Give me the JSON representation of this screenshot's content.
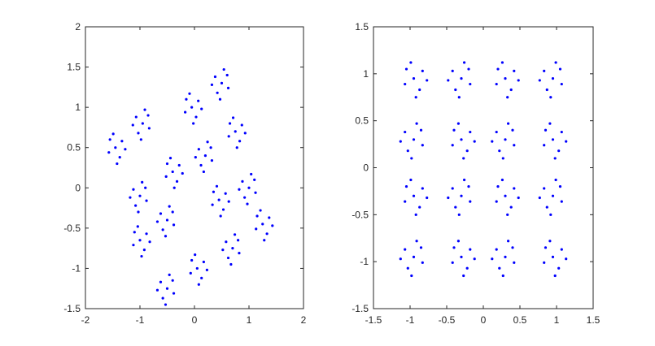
{
  "chart_data": [
    {
      "type": "scatter",
      "color": "#0000ff",
      "xlim": [
        -2,
        2
      ],
      "ylim": [
        -1.5,
        2
      ],
      "xticks": [
        -2,
        -1,
        0,
        1,
        2
      ],
      "yticks": [
        -1.5,
        -1,
        -0.5,
        0,
        0.5,
        1,
        1.5,
        2
      ],
      "x": [
        -1.45,
        -1.33,
        -1.55,
        -1.37,
        -1.57,
        -1.27,
        -1.49,
        -1.42,
        -0.95,
        -1.07,
        -0.85,
        -1.03,
        -0.83,
        -1.13,
        -0.91,
        -0.98,
        -0.05,
        0.07,
        -0.15,
        0.03,
        -0.17,
        0.13,
        -0.09,
        -0.02,
        0.5,
        0.38,
        0.6,
        0.42,
        0.62,
        0.32,
        0.54,
        0.47,
        0.75,
        0.87,
        0.65,
        0.83,
        0.63,
        0.93,
        0.71,
        0.78,
        0.2,
        0.08,
        0.3,
        0.12,
        0.32,
        0.02,
        0.24,
        0.17,
        -0.4,
        -0.28,
        -0.5,
        -0.32,
        -0.52,
        -0.22,
        -0.44,
        -0.37,
        -1,
        -1.12,
        -0.9,
        -1.08,
        -0.88,
        -1.18,
        -0.96,
        -1.03,
        -1,
        -0.88,
        -1.1,
        -0.92,
        -1.12,
        -0.82,
        -1.04,
        -0.97,
        -0.5,
        -0.62,
        -0.4,
        -0.58,
        -0.38,
        -0.68,
        -0.46,
        -0.53,
        0.45,
        0.57,
        0.35,
        0.53,
        0.33,
        0.63,
        0.41,
        0.48,
        1,
        0.88,
        1.1,
        0.92,
        1.12,
        0.82,
        1.04,
        0.97,
        1.25,
        1.37,
        1.15,
        1.33,
        1.13,
        1.43,
        1.21,
        1.28,
        0.7,
        0.58,
        0.8,
        0.62,
        0.82,
        0.52,
        0.74,
        0.67,
        0.05,
        0.17,
        -0.05,
        0.13,
        -0.07,
        0.23,
        0.01,
        0.08,
        -0.5,
        -0.62,
        -0.4,
        -0.58,
        -0.38,
        -0.68,
        -0.46,
        -0.53
      ],
      "values": [
        0.5,
        0.58,
        0.6,
        0.38,
        0.44,
        0.48,
        0.67,
        0.3,
        0.8,
        0.88,
        0.9,
        0.68,
        0.74,
        0.78,
        0.97,
        0.6,
        1,
        1.08,
        1.1,
        0.88,
        0.94,
        0.98,
        1.17,
        0.8,
        1.3,
        1.38,
        1.4,
        1.18,
        1.24,
        1.28,
        1.47,
        1.1,
        0.7,
        0.78,
        0.8,
        0.58,
        0.64,
        0.68,
        0.87,
        0.5,
        0.4,
        0.48,
        0.5,
        0.28,
        0.34,
        0.38,
        0.57,
        0.2,
        0.2,
        0.28,
        0.3,
        0.08,
        0.14,
        0.18,
        0.37,
        0,
        -0.1,
        -0.02,
        0,
        -0.22,
        -0.16,
        -0.12,
        0.07,
        -0.3,
        -0.65,
        -0.57,
        -0.55,
        -0.77,
        -0.71,
        -0.67,
        -0.48,
        -0.85,
        -0.4,
        -0.32,
        -0.3,
        -0.52,
        -0.46,
        -0.42,
        -0.23,
        -0.6,
        -0.15,
        -0.07,
        -0.05,
        -0.27,
        -0.21,
        -0.17,
        0.02,
        -0.35,
        0,
        0.08,
        0.1,
        -0.12,
        -0.06,
        -0.02,
        0.17,
        -0.2,
        -0.45,
        -0.37,
        -0.35,
        -0.57,
        -0.51,
        -0.47,
        -0.28,
        -0.65,
        -0.75,
        -0.67,
        -0.65,
        -0.87,
        -0.81,
        -0.77,
        -0.58,
        -0.95,
        -1,
        -0.92,
        -0.9,
        -1.12,
        -1.06,
        -1.02,
        -0.83,
        -1.2,
        -1.25,
        -1.17,
        -1.15,
        -1.37,
        -1.31,
        -1.27,
        -1.08,
        -1.45
      ]
    },
    {
      "type": "scatter",
      "color": "#0000ff",
      "xlim": [
        -1.5,
        1.5
      ],
      "ylim": [
        -1.5,
        1.5
      ],
      "xticks": [
        -1.5,
        -1,
        -0.5,
        0,
        0.5,
        1,
        1.5
      ],
      "yticks": [
        -1.5,
        -1,
        -0.5,
        0,
        0.5,
        1,
        1.5
      ],
      "x": [
        -0.95,
        -0.83,
        -1.05,
        -0.87,
        -1.07,
        -0.77,
        -0.99,
        -0.92,
        -0.3,
        -0.42,
        -0.2,
        -0.38,
        -0.18,
        -0.48,
        -0.26,
        -0.33,
        0.3,
        0.42,
        0.2,
        0.38,
        0.18,
        0.48,
        0.26,
        0.33,
        0.95,
        0.83,
        1.05,
        0.87,
        1.07,
        0.77,
        0.99,
        0.92,
        -0.95,
        -1.07,
        -0.85,
        -1.03,
        -0.83,
        -1.13,
        -0.91,
        -0.98,
        -0.3,
        -0.18,
        -0.4,
        -0.22,
        -0.42,
        -0.12,
        -0.34,
        -0.27,
        0.3,
        0.18,
        0.4,
        0.22,
        0.42,
        0.12,
        0.34,
        0.27,
        0.95,
        1.07,
        0.85,
        1.03,
        0.83,
        1.13,
        0.91,
        0.98,
        -0.95,
        -0.83,
        -1.05,
        -0.87,
        -1.07,
        -0.77,
        -0.99,
        -0.92,
        -0.3,
        -0.42,
        -0.2,
        -0.38,
        -0.18,
        -0.48,
        -0.26,
        -0.33,
        0.3,
        0.42,
        0.2,
        0.38,
        0.18,
        0.48,
        0.26,
        0.33,
        0.95,
        0.83,
        1.05,
        0.87,
        1.07,
        0.77,
        0.99,
        0.92,
        -0.95,
        -1.07,
        -0.85,
        -1.03,
        -0.83,
        -1.13,
        -0.91,
        -0.98,
        -0.3,
        -0.18,
        -0.4,
        -0.22,
        -0.42,
        -0.12,
        -0.34,
        -0.27,
        0.3,
        0.18,
        0.4,
        0.22,
        0.42,
        0.12,
        0.34,
        0.27,
        0.95,
        1.07,
        0.85,
        1.03,
        0.83,
        1.13,
        0.91,
        0.98
      ],
      "values": [
        0.95,
        1.03,
        1.05,
        0.83,
        0.89,
        0.93,
        1.12,
        0.75,
        0.95,
        1.03,
        1.05,
        0.83,
        0.89,
        0.93,
        1.12,
        0.75,
        0.95,
        1.03,
        1.05,
        0.83,
        0.89,
        0.93,
        1.12,
        0.75,
        0.95,
        1.03,
        1.05,
        0.83,
        0.89,
        0.93,
        1.12,
        0.75,
        0.3,
        0.38,
        0.4,
        0.18,
        0.24,
        0.28,
        0.47,
        0.1,
        0.3,
        0.38,
        0.4,
        0.18,
        0.24,
        0.28,
        0.47,
        0.1,
        0.3,
        0.38,
        0.4,
        0.18,
        0.24,
        0.28,
        0.47,
        0.1,
        0.3,
        0.38,
        0.4,
        0.18,
        0.24,
        0.28,
        0.47,
        0.1,
        -0.3,
        -0.22,
        -0.2,
        -0.42,
        -0.36,
        -0.32,
        -0.13,
        -0.5,
        -0.3,
        -0.22,
        -0.2,
        -0.42,
        -0.36,
        -0.32,
        -0.13,
        -0.5,
        -0.3,
        -0.22,
        -0.2,
        -0.42,
        -0.36,
        -0.32,
        -0.13,
        -0.5,
        -0.3,
        -0.22,
        -0.2,
        -0.42,
        -0.36,
        -0.32,
        -0.13,
        -0.5,
        -0.95,
        -0.87,
        -0.85,
        -1.07,
        -1.01,
        -0.97,
        -0.78,
        -1.15,
        -0.95,
        -0.87,
        -0.85,
        -1.07,
        -1.01,
        -0.97,
        -0.78,
        -1.15,
        -0.95,
        -0.87,
        -0.85,
        -1.07,
        -1.01,
        -0.97,
        -0.78,
        -1.15,
        -0.95,
        -0.87,
        -0.85,
        -1.07,
        -1.01,
        -0.97,
        -0.78,
        -1.15
      ]
    }
  ]
}
